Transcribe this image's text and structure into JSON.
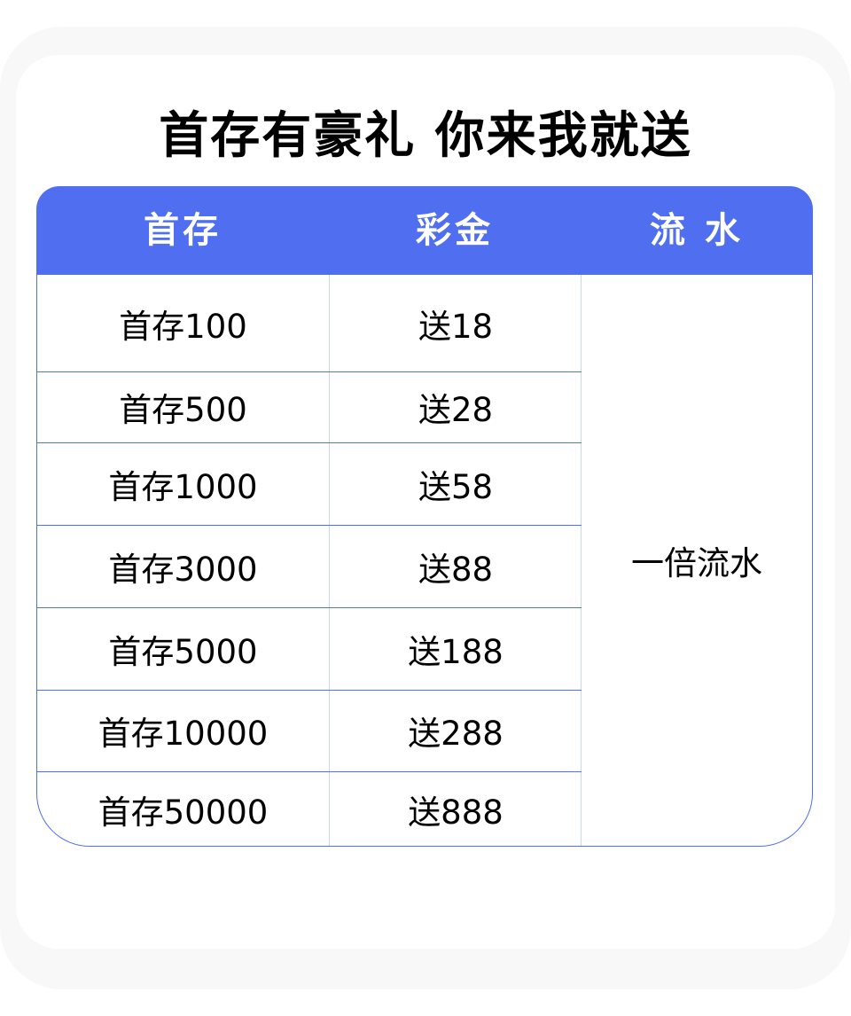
{
  "title": "首存有豪礼 你来我就送",
  "table": {
    "headers": [
      "首存",
      "彩金",
      "流 水"
    ],
    "rows": [
      {
        "deposit": "首存100",
        "bonus": "送18"
      },
      {
        "deposit": "首存500",
        "bonus": "送28"
      },
      {
        "deposit": "首存1000",
        "bonus": "送58"
      },
      {
        "deposit": "首存3000",
        "bonus": "送88"
      },
      {
        "deposit": "首存5000",
        "bonus": "送188"
      },
      {
        "deposit": "首存10000",
        "bonus": "送288"
      },
      {
        "deposit": "首存50000",
        "bonus": "送888"
      }
    ],
    "turnover": "一倍流水"
  },
  "colors": {
    "header": "#4f6ef0",
    "divider": "#c9d4fb"
  }
}
